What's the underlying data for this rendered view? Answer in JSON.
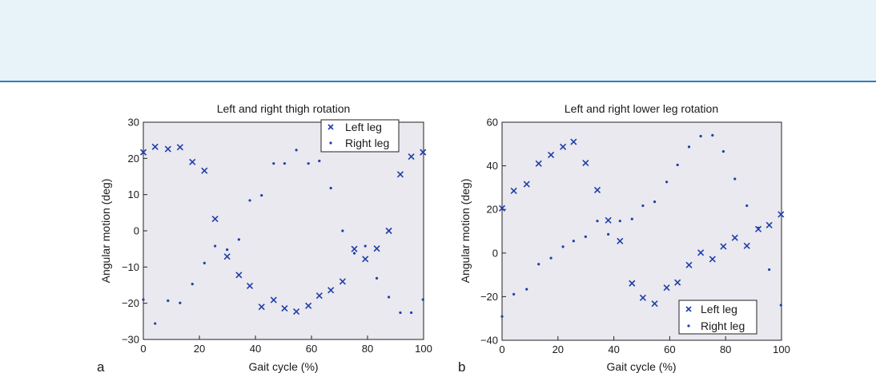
{
  "chart_data": [
    {
      "type": "scatter",
      "title": "Left and right thigh rotation",
      "xlabel": "Gait cycle (%)",
      "ylabel": "Angular motion (deg)",
      "panel_label": "a",
      "xlim": [
        0,
        100
      ],
      "ylim": [
        -30,
        30
      ],
      "xticks": [
        "0",
        "20",
        "40",
        "60",
        "80",
        "100"
      ],
      "yticks": [
        "30",
        "20",
        "10",
        "0",
        "−10",
        "−20",
        "−30"
      ],
      "legend": "top-right",
      "series": [
        {
          "name": "Left leg",
          "marker": "x",
          "color": "#1f3fa8",
          "x": [
            0,
            4.2,
            8.8,
            13.1,
            17.5,
            21.8,
            25.6,
            29.9,
            34.1,
            38.0,
            42.2,
            46.5,
            50.4,
            54.6,
            58.9,
            62.8,
            66.9,
            71.1,
            75.3,
            79.2,
            83.3,
            87.6,
            91.7,
            95.6,
            99.8
          ],
          "y": [
            21.7,
            23.2,
            22.6,
            23.1,
            19.0,
            16.6,
            3.3,
            -7.1,
            -12.2,
            -15.2,
            -21.0,
            -19.1,
            -21.4,
            -22.3,
            -20.7,
            -17.9,
            -16.4,
            -14.0,
            -5.0,
            -7.8,
            -4.9,
            0.0,
            15.6,
            20.5,
            21.7
          ]
        },
        {
          "name": "Right leg",
          "marker": "dot",
          "color": "#1f3fa8",
          "x": [
            0,
            4.2,
            8.8,
            13.1,
            17.5,
            21.8,
            25.6,
            29.9,
            34.1,
            38.0,
            42.2,
            46.5,
            50.4,
            54.6,
            58.9,
            62.8,
            66.9,
            71.1,
            75.3,
            79.2,
            83.3,
            87.6,
            91.7,
            95.6,
            99.8
          ],
          "y": [
            -19.0,
            -25.6,
            -19.3,
            -19.9,
            -14.7,
            -8.9,
            -4.2,
            -5.2,
            -2.4,
            8.4,
            9.8,
            18.6,
            18.6,
            22.3,
            18.6,
            19.3,
            11.8,
            0.0,
            -6.2,
            -4.2,
            -13.1,
            -18.3,
            -22.6,
            -22.6,
            -19.0
          ]
        }
      ]
    },
    {
      "type": "scatter",
      "title": "Left and right lower leg rotation",
      "xlabel": "Gait cycle (%)",
      "ylabel": "Angular motion (deg)",
      "panel_label": "b",
      "xlim": [
        0,
        100
      ],
      "ylim": [
        -40,
        60
      ],
      "xticks": [
        "0",
        "20",
        "40",
        "60",
        "80",
        "100"
      ],
      "yticks": [
        "60",
        "40",
        "20",
        "0",
        "−20",
        "−40"
      ],
      "legend": "bottom-right",
      "series": [
        {
          "name": "Left leg",
          "marker": "x",
          "color": "#1f3fa8",
          "x": [
            0,
            4.2,
            8.8,
            13.1,
            17.5,
            21.8,
            25.6,
            29.9,
            34.1,
            38.0,
            42.2,
            46.5,
            50.4,
            54.6,
            58.9,
            62.8,
            66.9,
            71.1,
            75.3,
            79.2,
            83.3,
            87.6,
            91.7,
            95.6,
            99.8
          ],
          "y": [
            20.5,
            28.5,
            31.6,
            41.0,
            45.0,
            48.7,
            51.0,
            41.3,
            28.9,
            15.0,
            5.5,
            -13.9,
            -20.5,
            -23.2,
            -15.9,
            -13.5,
            -5.5,
            0.2,
            -2.8,
            3.0,
            7.0,
            3.3,
            11.0,
            12.8,
            17.7
          ]
        },
        {
          "name": "Right leg",
          "marker": "dot",
          "color": "#1f3fa8",
          "x": [
            0,
            4.2,
            8.8,
            13.1,
            17.5,
            21.8,
            25.6,
            29.9,
            34.1,
            38.0,
            42.2,
            46.5,
            50.4,
            54.6,
            58.9,
            62.8,
            66.9,
            71.1,
            75.3,
            79.2,
            83.3,
            87.6,
            91.7,
            95.6,
            99.8
          ],
          "y": [
            -29.1,
            -18.9,
            -16.6,
            -5.1,
            -2.3,
            2.9,
            5.5,
            7.5,
            14.7,
            8.6,
            14.7,
            15.6,
            21.7,
            23.5,
            32.6,
            40.4,
            48.7,
            53.6,
            54.0,
            46.6,
            34.0,
            21.7,
            11.5,
            -7.6,
            -23.9
          ]
        }
      ]
    }
  ]
}
